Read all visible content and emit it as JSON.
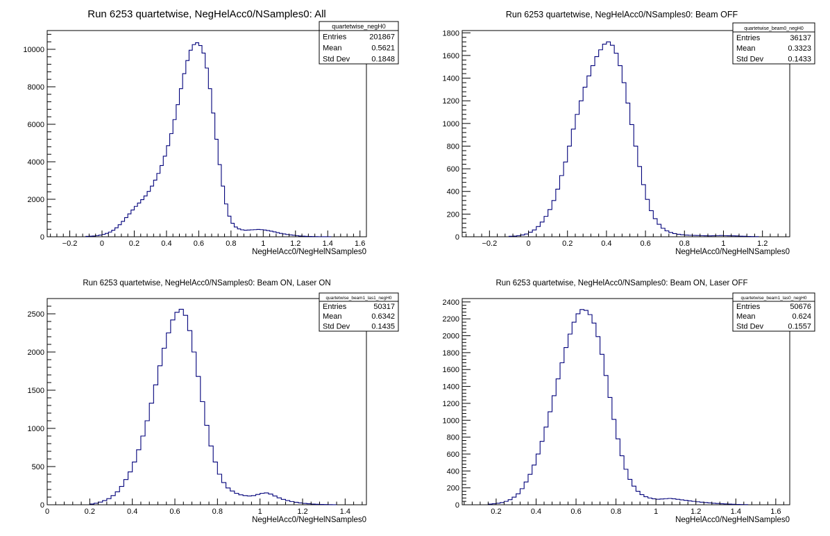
{
  "chart_data": [
    {
      "type": "bar",
      "title": "Run 6253 quartetwise, NegHelAcc0/NSamples0: All",
      "xlabel": "NegHelAcc0/NegHelNSamples0",
      "ylabel": "",
      "xlim": [
        -0.34,
        1.64
      ],
      "ylim": [
        0,
        11000
      ],
      "xticks": [
        -0.2,
        0,
        0.2,
        0.4,
        0.6,
        0.8,
        1,
        1.2,
        1.4,
        1.6
      ],
      "xtick_labels": [
        "−0.2",
        "0",
        "0.2",
        "0.4",
        "0.6",
        "0.8",
        "1",
        "1.2",
        "1.4",
        "1.6"
      ],
      "yticks": [
        0,
        2000,
        4000,
        6000,
        8000,
        10000
      ],
      "ytick_labels": [
        "0",
        "2000",
        "4000",
        "6000",
        "8000",
        "10000"
      ],
      "grid": false,
      "legend": "top-right",
      "stats": {
        "name": "quartetwise_negH0",
        "rows": [
          {
            "label": "Entries",
            "value": "201867"
          },
          {
            "label": "Mean",
            "value": "0.5621"
          },
          {
            "label": "Std Dev",
            "value": "0.1848"
          }
        ]
      },
      "x": [
        -0.1,
        -0.08,
        -0.06,
        -0.04,
        -0.02,
        0.0,
        0.02,
        0.04,
        0.06,
        0.08,
        0.1,
        0.12,
        0.14,
        0.16,
        0.18,
        0.2,
        0.22,
        0.24,
        0.26,
        0.28,
        0.3,
        0.32,
        0.34,
        0.36,
        0.38,
        0.4,
        0.42,
        0.44,
        0.46,
        0.48,
        0.5,
        0.52,
        0.54,
        0.56,
        0.58,
        0.6,
        0.62,
        0.64,
        0.66,
        0.68,
        0.7,
        0.72,
        0.74,
        0.76,
        0.78,
        0.8,
        0.82,
        0.84,
        0.86,
        0.88,
        0.9,
        0.92,
        0.94,
        0.96,
        0.98,
        1.0,
        1.02,
        1.04,
        1.06,
        1.08,
        1.1,
        1.12,
        1.14,
        1.16,
        1.18,
        1.2,
        1.22,
        1.24,
        1.26,
        1.28,
        1.3,
        1.32,
        1.34,
        1.36,
        1.38,
        1.4
      ],
      "values": [
        20,
        30,
        40,
        60,
        90,
        130,
        180,
        250,
        350,
        480,
        640,
        820,
        1020,
        1220,
        1430,
        1620,
        1800,
        1980,
        2180,
        2420,
        2700,
        3020,
        3380,
        3800,
        4300,
        4860,
        5500,
        6250,
        7050,
        7900,
        8700,
        9400,
        9950,
        10250,
        10350,
        10200,
        9800,
        9000,
        7900,
        6600,
        5200,
        3850,
        2700,
        1750,
        1100,
        720,
        520,
        420,
        370,
        350,
        360,
        370,
        380,
        390,
        380,
        360,
        330,
        300,
        260,
        220,
        180,
        150,
        120,
        100,
        80,
        60,
        40,
        30,
        20,
        15,
        10,
        8,
        5,
        3,
        2,
        1
      ]
    },
    {
      "type": "bar",
      "title": "Run 6253 quartetwise, NegHelAcc0/NSamples0: Beam OFF",
      "xlabel": "NegHelAcc0/NegHelNSamples0",
      "ylabel": "",
      "xlim": [
        -0.34,
        1.34
      ],
      "ylim": [
        0,
        1820
      ],
      "xticks": [
        -0.2,
        0,
        0.2,
        0.4,
        0.6,
        0.8,
        1,
        1.2
      ],
      "xtick_labels": [
        "−0.2",
        "0",
        "0.2",
        "0.4",
        "0.6",
        "0.8",
        "1",
        "1.2"
      ],
      "yticks": [
        0,
        200,
        400,
        600,
        800,
        1000,
        1200,
        1400,
        1600,
        1800
      ],
      "ytick_labels": [
        "0",
        "200",
        "400",
        "600",
        "800",
        "1000",
        "1200",
        "1400",
        "1600",
        "1800"
      ],
      "grid": false,
      "legend": "top-right",
      "stats": {
        "name": "quartetwise_beam0_negH0",
        "rows": [
          {
            "label": "Entries",
            "value": "36137"
          },
          {
            "label": "Mean",
            "value": "0.3323"
          },
          {
            "label": "Std Dev",
            "value": "0.1433"
          }
        ]
      },
      "x": [
        -0.1,
        -0.08,
        -0.06,
        -0.04,
        -0.02,
        0.0,
        0.02,
        0.04,
        0.06,
        0.08,
        0.1,
        0.12,
        0.14,
        0.16,
        0.18,
        0.2,
        0.22,
        0.24,
        0.26,
        0.28,
        0.3,
        0.32,
        0.34,
        0.36,
        0.38,
        0.4,
        0.42,
        0.44,
        0.46,
        0.48,
        0.5,
        0.52,
        0.54,
        0.56,
        0.58,
        0.6,
        0.62,
        0.64,
        0.66,
        0.68,
        0.7,
        0.72,
        0.74,
        0.76,
        0.78,
        0.8,
        0.82,
        0.84,
        0.86,
        0.88,
        0.9,
        0.92,
        0.94,
        0.96,
        0.98,
        1.0,
        1.02,
        1.04,
        1.06,
        1.08,
        1.1,
        1.12,
        1.14,
        1.16
      ],
      "values": [
        4,
        6,
        10,
        16,
        24,
        40,
        60,
        90,
        130,
        180,
        240,
        320,
        420,
        540,
        660,
        800,
        950,
        1080,
        1200,
        1320,
        1420,
        1510,
        1590,
        1650,
        1700,
        1720,
        1690,
        1620,
        1510,
        1360,
        1180,
        990,
        800,
        620,
        460,
        330,
        230,
        160,
        110,
        75,
        52,
        38,
        28,
        22,
        18,
        15,
        13,
        12,
        11,
        10,
        9,
        8,
        9,
        10,
        11,
        10,
        9,
        8,
        7,
        5,
        4,
        3,
        2,
        1
      ]
    },
    {
      "type": "bar",
      "title": "Run 6253 quartetwise, NegHelAcc0/NSamples0: Beam ON, Laser ON",
      "xlabel": "NegHelAcc0/NegHelNSamples0",
      "ylabel": "",
      "xlim": [
        0,
        1.5
      ],
      "ylim": [
        0,
        2700
      ],
      "xticks": [
        0,
        0.2,
        0.4,
        0.6,
        0.8,
        1,
        1.2,
        1.4
      ],
      "xtick_labels": [
        "0",
        "0.2",
        "0.4",
        "0.6",
        "0.8",
        "1",
        "1.2",
        "1.4"
      ],
      "yticks": [
        0,
        500,
        1000,
        1500,
        2000,
        2500
      ],
      "ytick_labels": [
        "0",
        "500",
        "1000",
        "1500",
        "2000",
        "2500"
      ],
      "grid": false,
      "legend": "top-right",
      "stats": {
        "name": "quartetwise_beam1_las1_negH0",
        "rows": [
          {
            "label": "Entries",
            "value": "50317"
          },
          {
            "label": "Mean",
            "value": "0.6342"
          },
          {
            "label": "Std Dev",
            "value": "0.1435"
          }
        ]
      },
      "x": [
        0.2,
        0.22,
        0.24,
        0.26,
        0.28,
        0.3,
        0.32,
        0.34,
        0.36,
        0.38,
        0.4,
        0.42,
        0.44,
        0.46,
        0.48,
        0.5,
        0.52,
        0.54,
        0.56,
        0.58,
        0.6,
        0.62,
        0.64,
        0.66,
        0.68,
        0.7,
        0.72,
        0.74,
        0.76,
        0.78,
        0.8,
        0.82,
        0.84,
        0.86,
        0.88,
        0.9,
        0.92,
        0.94,
        0.96,
        0.98,
        1.0,
        1.02,
        1.04,
        1.06,
        1.08,
        1.1,
        1.12,
        1.14,
        1.16,
        1.18,
        1.2,
        1.22,
        1.24,
        1.26,
        1.28,
        1.3,
        1.32,
        1.34
      ],
      "values": [
        10,
        20,
        35,
        55,
        80,
        120,
        170,
        240,
        330,
        430,
        560,
        720,
        900,
        1100,
        1330,
        1570,
        1820,
        2050,
        2250,
        2420,
        2520,
        2560,
        2480,
        2280,
        2000,
        1680,
        1350,
        1040,
        770,
        560,
        400,
        290,
        220,
        180,
        150,
        130,
        120,
        115,
        120,
        135,
        150,
        155,
        140,
        115,
        90,
        70,
        55,
        42,
        32,
        24,
        18,
        13,
        9,
        6,
        4,
        3,
        2,
        1
      ]
    },
    {
      "type": "bar",
      "title": "Run 6253 quartetwise, NegHelAcc0/NSamples0: Beam ON, Laser OFF",
      "xlabel": "NegHelAcc0/NegHelNSamples0",
      "ylabel": "",
      "xlim": [
        0.03,
        1.67
      ],
      "ylim": [
        0,
        2440
      ],
      "xticks": [
        0.2,
        0.4,
        0.6,
        0.8,
        1,
        1.2,
        1.4,
        1.6
      ],
      "xtick_labels": [
        "0.2",
        "0.4",
        "0.6",
        "0.8",
        "1",
        "1.2",
        "1.4",
        "1.6"
      ],
      "yticks": [
        0,
        200,
        400,
        600,
        800,
        1000,
        1200,
        1400,
        1600,
        1800,
        2000,
        2200,
        2400
      ],
      "ytick_labels": [
        "0",
        "200",
        "400",
        "600",
        "800",
        "1000",
        "1200",
        "1400",
        "1600",
        "1800",
        "2000",
        "2200",
        "2400"
      ],
      "grid": false,
      "legend": "top-right",
      "stats": {
        "name": "quartetwise_beam1_las0_negH0",
        "rows": [
          {
            "label": "Entries",
            "value": "50676"
          },
          {
            "label": "Mean",
            "value": "0.624"
          },
          {
            "label": "Std Dev",
            "value": "0.1557"
          }
        ]
      },
      "x": [
        0.16,
        0.18,
        0.2,
        0.22,
        0.24,
        0.26,
        0.28,
        0.3,
        0.32,
        0.34,
        0.36,
        0.38,
        0.4,
        0.42,
        0.44,
        0.46,
        0.48,
        0.5,
        0.52,
        0.54,
        0.56,
        0.58,
        0.6,
        0.62,
        0.64,
        0.66,
        0.68,
        0.7,
        0.72,
        0.74,
        0.76,
        0.78,
        0.8,
        0.82,
        0.84,
        0.86,
        0.88,
        0.9,
        0.92,
        0.94,
        0.96,
        0.98,
        1.0,
        1.02,
        1.04,
        1.06,
        1.08,
        1.1,
        1.12,
        1.14,
        1.16,
        1.18,
        1.2,
        1.22,
        1.24,
        1.26,
        1.28,
        1.3,
        1.32,
        1.34,
        1.36,
        1.38,
        1.4,
        1.42,
        1.44
      ],
      "values": [
        8,
        12,
        18,
        26,
        40,
        60,
        90,
        130,
        190,
        270,
        360,
        470,
        600,
        750,
        920,
        1100,
        1290,
        1490,
        1680,
        1860,
        2020,
        2160,
        2260,
        2310,
        2300,
        2250,
        2150,
        1990,
        1780,
        1530,
        1270,
        1010,
        780,
        580,
        420,
        300,
        220,
        160,
        120,
        95,
        80,
        70,
        65,
        68,
        72,
        75,
        70,
        64,
        58,
        52,
        46,
        40,
        35,
        30,
        26,
        22,
        18,
        15,
        12,
        10,
        8,
        6,
        4,
        3,
        2
      ]
    }
  ]
}
